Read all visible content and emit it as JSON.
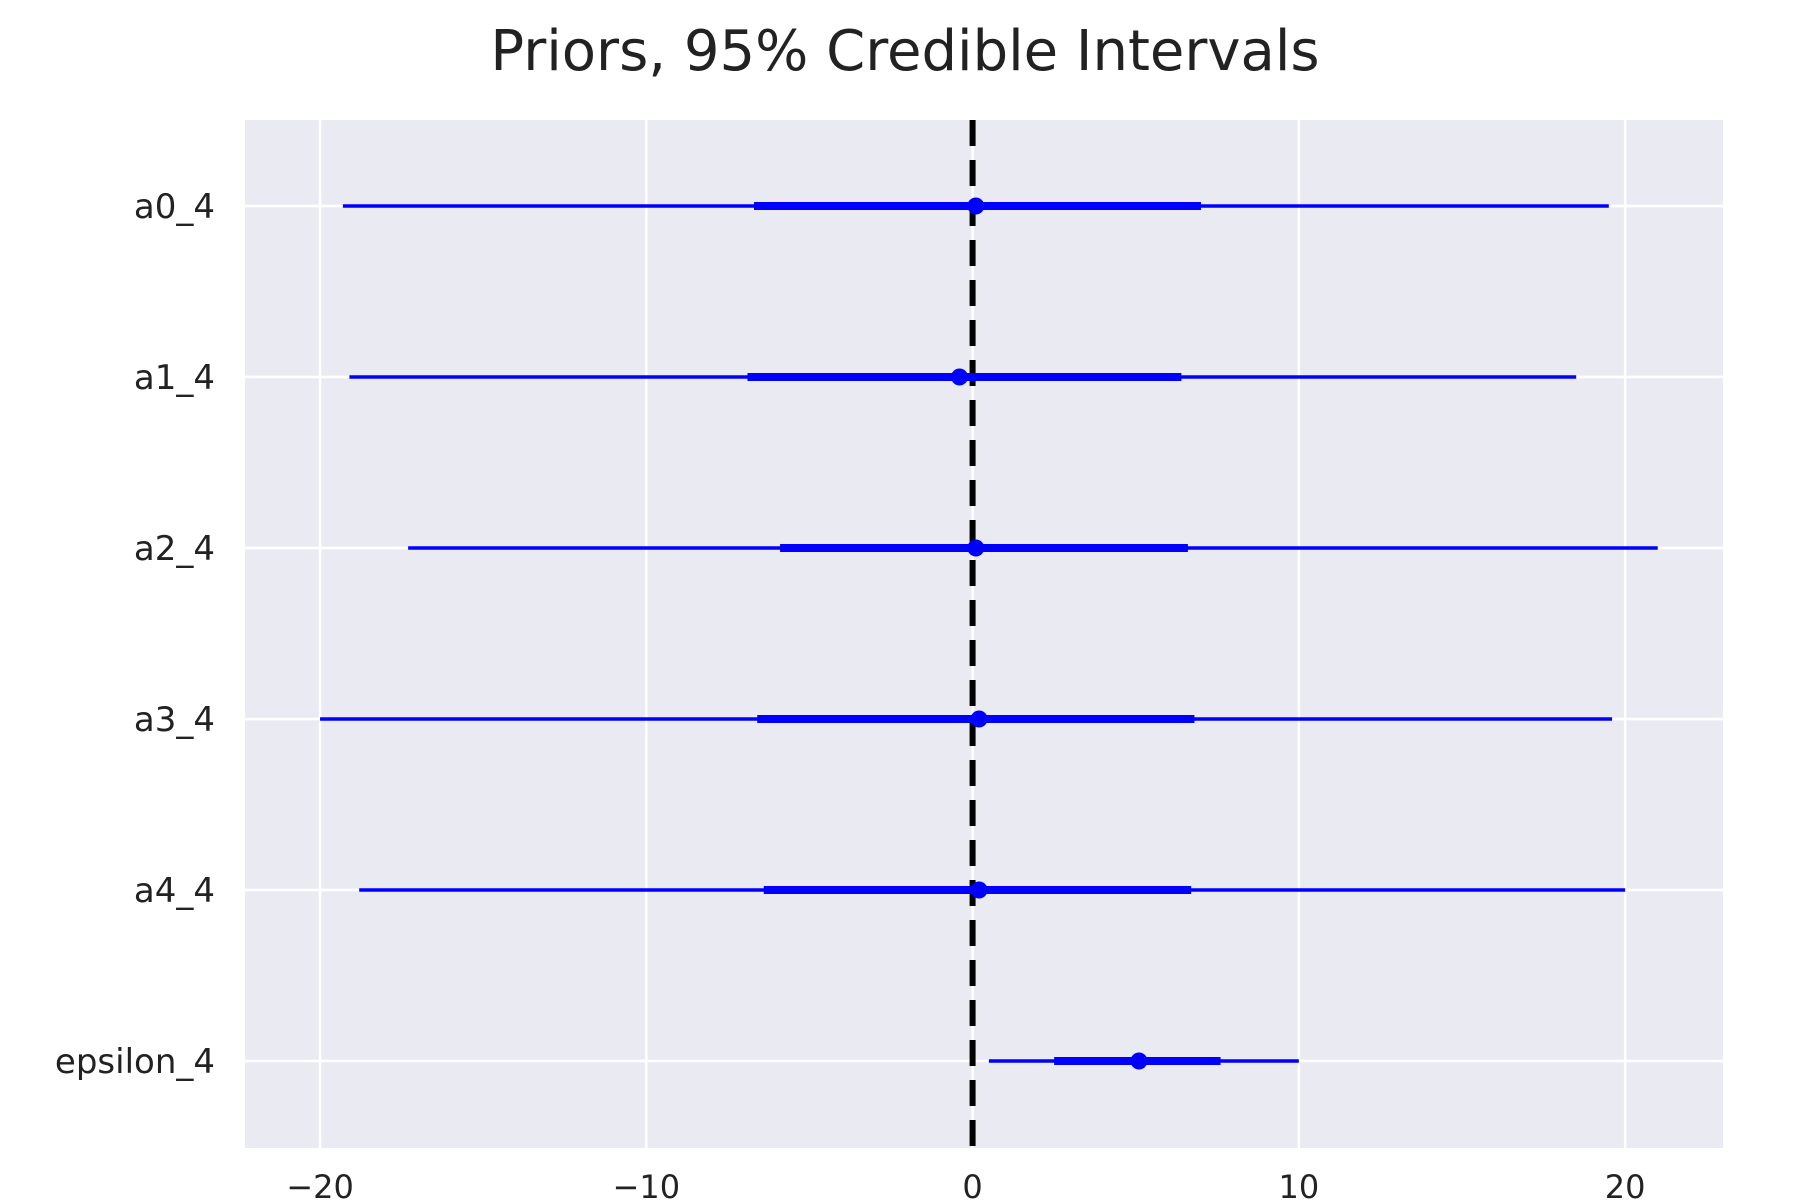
{
  "chart_data": {
    "type": "interval",
    "title": "Priors, 95% Credible Intervals",
    "xlabel": "",
    "ylabel": "",
    "xlim": [
      -22.3,
      23.0
    ],
    "xticks": [
      -20,
      -10,
      0,
      10,
      20
    ],
    "xtick_labels": [
      "−20",
      "−10",
      "0",
      "10",
      "20"
    ],
    "reference_line": 0,
    "grid": true,
    "colors": {
      "background": "#eaeaf2",
      "grid": "#ffffff",
      "interval": "#0000ff",
      "reference": "#000000"
    },
    "series": [
      {
        "label": "a0_4",
        "low": -19.3,
        "q25": -6.7,
        "median": 0.1,
        "q75": 7.0,
        "high": 19.5
      },
      {
        "label": "a1_4",
        "low": -19.1,
        "q25": -6.9,
        "median": -0.4,
        "q75": 6.4,
        "high": 18.5
      },
      {
        "label": "a2_4",
        "low": -17.3,
        "q25": -5.9,
        "median": 0.1,
        "q75": 6.6,
        "high": 21.0
      },
      {
        "label": "a3_4",
        "low": -20.0,
        "q25": -6.6,
        "median": 0.2,
        "q75": 6.8,
        "high": 19.6
      },
      {
        "label": "a4_4",
        "low": -18.8,
        "q25": -6.4,
        "median": 0.2,
        "q75": 6.7,
        "high": 20.0
      },
      {
        "label": "epsilon_4",
        "low": 0.5,
        "q25": 2.5,
        "median": 5.1,
        "q75": 7.6,
        "high": 10.0
      }
    ]
  }
}
